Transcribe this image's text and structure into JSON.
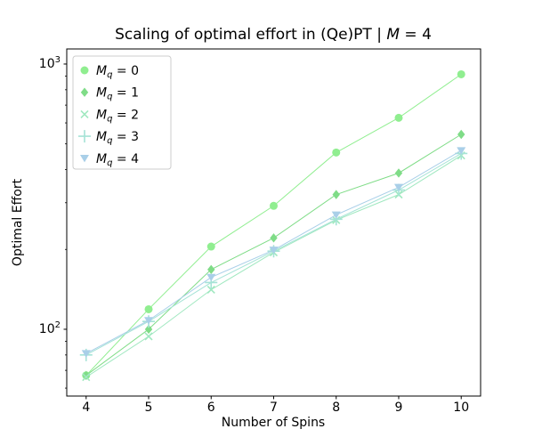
{
  "figure": {
    "background": "#ffffff",
    "text_color": "#000000",
    "spine_color": "#000000",
    "legend_border_color": "#cccccc"
  },
  "chart_data": {
    "type": "line",
    "title": "Scaling of optimal effort in (Qe)PT | M = 4",
    "xlabel": "Number of Spins",
    "ylabel": "Optimal Effort",
    "yscale": "log",
    "grid": false,
    "legend_position": "upper-left",
    "x": [
      4,
      5,
      6,
      7,
      8,
      9,
      10
    ],
    "x_ticks": [
      4,
      5,
      6,
      7,
      8,
      9,
      10
    ],
    "y_major_ticks": [
      100,
      1000
    ],
    "xlim": [
      3.69,
      10.31
    ],
    "ylim": [
      56,
      1140
    ],
    "series": [
      {
        "label": "M_q = 0",
        "marker": "circle",
        "color": "#90ee90",
        "values": [
          67,
          119,
          205,
          292,
          464,
          627,
          915
        ]
      },
      {
        "label": "M_q = 1",
        "marker": "diamond",
        "color": "#7fdc87",
        "values": [
          67,
          100,
          168,
          221,
          322,
          388,
          543
        ]
      },
      {
        "label": "M_q = 2",
        "marker": "x",
        "color": "#a0e8c0",
        "values": [
          66,
          94,
          141,
          195,
          258,
          322,
          452
        ]
      },
      {
        "label": "M_q = 3",
        "marker": "plus",
        "color": "#a5e3d6",
        "values": [
          80,
          107,
          150,
          197,
          260,
          335,
          460
        ]
      },
      {
        "label": "M_q = 4",
        "marker": "triangle-down",
        "color": "#a9cfe8",
        "values": [
          81,
          108,
          157,
          199,
          270,
          343,
          472
        ]
      }
    ]
  }
}
